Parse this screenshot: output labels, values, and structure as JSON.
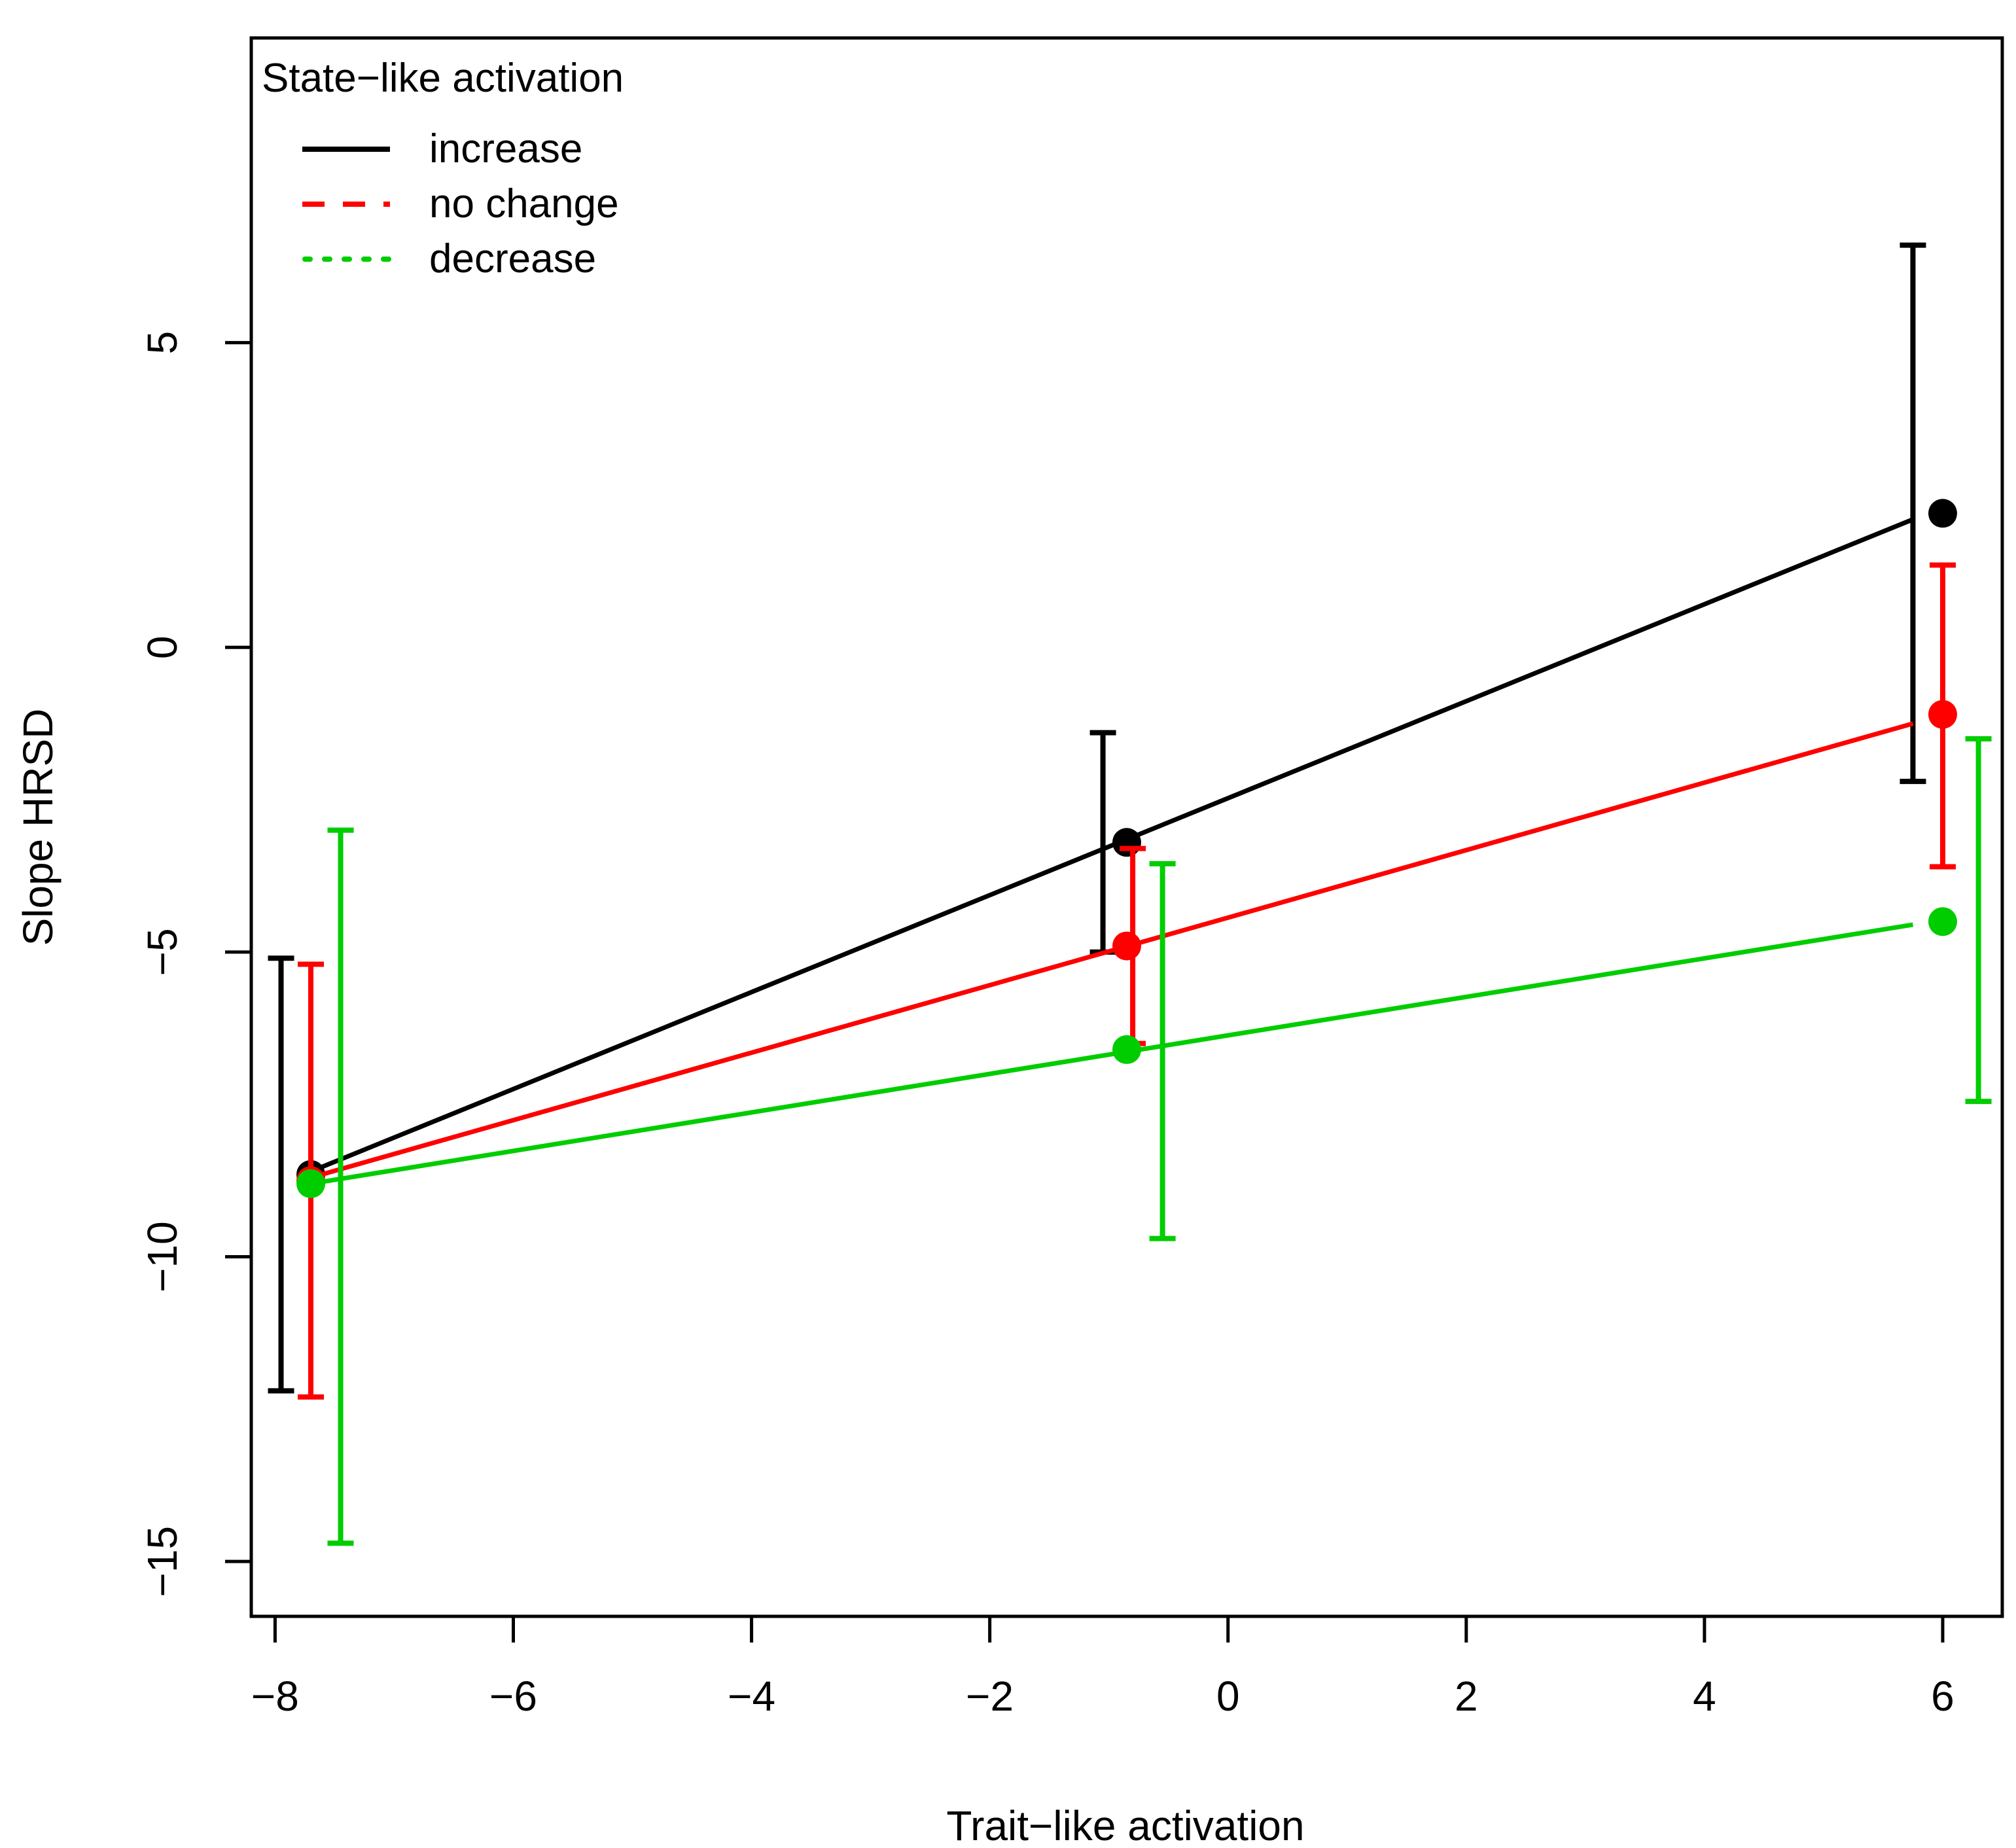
{
  "chart_data": {
    "type": "line",
    "xlabel": "Trait−like activation",
    "ylabel": "Slope HRSD",
    "xlim": [
      -8.2,
      6.5
    ],
    "ylim": [
      -15.9,
      10.0
    ],
    "xticks": [
      -8,
      -6,
      -4,
      -2,
      0,
      2,
      4,
      6
    ],
    "xtick_labels": [
      "−8",
      "−6",
      "−4",
      "−2",
      "0",
      "2",
      "4",
      "6"
    ],
    "yticks": [
      -15,
      -10,
      -5,
      0,
      5
    ],
    "ytick_labels": [
      "−15",
      "−10",
      "−5",
      "0",
      "5"
    ],
    "grid": false,
    "legend": {
      "title": "State−like activation",
      "position": "top-left",
      "entries": [
        "increase",
        "no change",
        "decrease"
      ]
    },
    "series": [
      {
        "name": "increase",
        "color": "#000000",
        "line_style": "solid",
        "line": {
          "x": [
            -7.7,
            5.75
          ],
          "y": [
            -8.6,
            2.1
          ]
        },
        "points": {
          "x": [
            -7.7,
            -0.85,
            6.0
          ],
          "y": [
            -8.65,
            -3.2,
            2.2
          ]
        },
        "errorbars": [
          {
            "x": -7.95,
            "low": -12.2,
            "high": -5.1
          },
          {
            "x": -1.05,
            "low": -5.0,
            "high": -1.4
          },
          {
            "x": 5.75,
            "low": -2.2,
            "high": 6.6
          }
        ]
      },
      {
        "name": "no change",
        "color": "#ff0000",
        "line_style": "dashed",
        "line": {
          "x": [
            -7.7,
            5.75
          ],
          "y": [
            -8.7,
            -1.25
          ]
        },
        "points": {
          "x": [
            -7.7,
            -0.85,
            6.0
          ],
          "y": [
            -8.75,
            -4.9,
            -1.1
          ]
        },
        "errorbars": [
          {
            "x": -7.7,
            "low": -12.3,
            "high": -5.2
          },
          {
            "x": -0.8,
            "low": -6.5,
            "high": -3.3
          },
          {
            "x": 6.0,
            "low": -3.6,
            "high": 1.35
          }
        ]
      },
      {
        "name": "decrease",
        "color": "#00cd00",
        "line_style": "dotted",
        "line": {
          "x": [
            -7.7,
            5.75
          ],
          "y": [
            -8.8,
            -4.55
          ]
        },
        "points": {
          "x": [
            -7.7,
            -0.85,
            6.0
          ],
          "y": [
            -8.8,
            -6.6,
            -4.5
          ]
        },
        "errorbars": [
          {
            "x": -7.45,
            "low": -14.7,
            "high": -3.0
          },
          {
            "x": -0.55,
            "low": -9.7,
            "high": -3.55
          },
          {
            "x": 6.3,
            "low": -7.45,
            "high": -1.5
          }
        ]
      }
    ]
  }
}
